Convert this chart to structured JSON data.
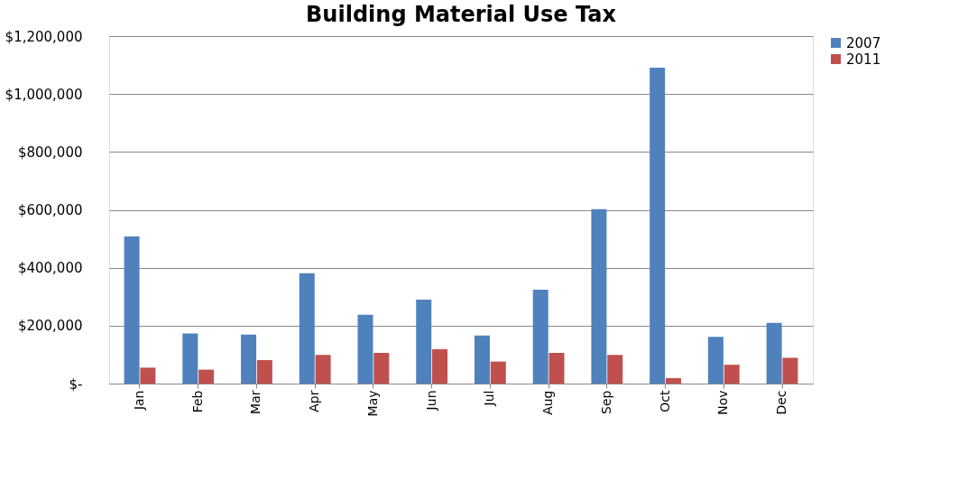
{
  "chart_data": {
    "type": "bar",
    "title": "Building Material Use Tax",
    "categories": [
      "Jan",
      "Feb",
      "Mar",
      "Apr",
      "May",
      "Jun",
      "Jul",
      "Aug",
      "Sep",
      "Oct",
      "Nov",
      "Dec"
    ],
    "series": [
      {
        "name": "2007",
        "color": "#4f81bd",
        "values": [
          508000,
          173000,
          169000,
          381000,
          238000,
          290000,
          166000,
          324000,
          602000,
          1091000,
          161000,
          210000
        ]
      },
      {
        "name": "2011",
        "color": "#c0504d",
        "values": [
          55000,
          48000,
          81000,
          99000,
          106000,
          119000,
          76000,
          106000,
          99000,
          19000,
          65000,
          89000
        ]
      }
    ],
    "ylim": [
      0,
      1200000
    ],
    "yticks": [
      {
        "value": 0,
        "label": "$-"
      },
      {
        "value": 200000,
        "label": "$200,000"
      },
      {
        "value": 400000,
        "label": "$400,000"
      },
      {
        "value": 600000,
        "label": "$600,000"
      },
      {
        "value": 800000,
        "label": "$800,000"
      },
      {
        "value": 1000000,
        "label": "$1,000,000"
      },
      {
        "value": 1200000,
        "label": "$1,200,000"
      }
    ],
    "grid": "y",
    "legend": "right"
  }
}
